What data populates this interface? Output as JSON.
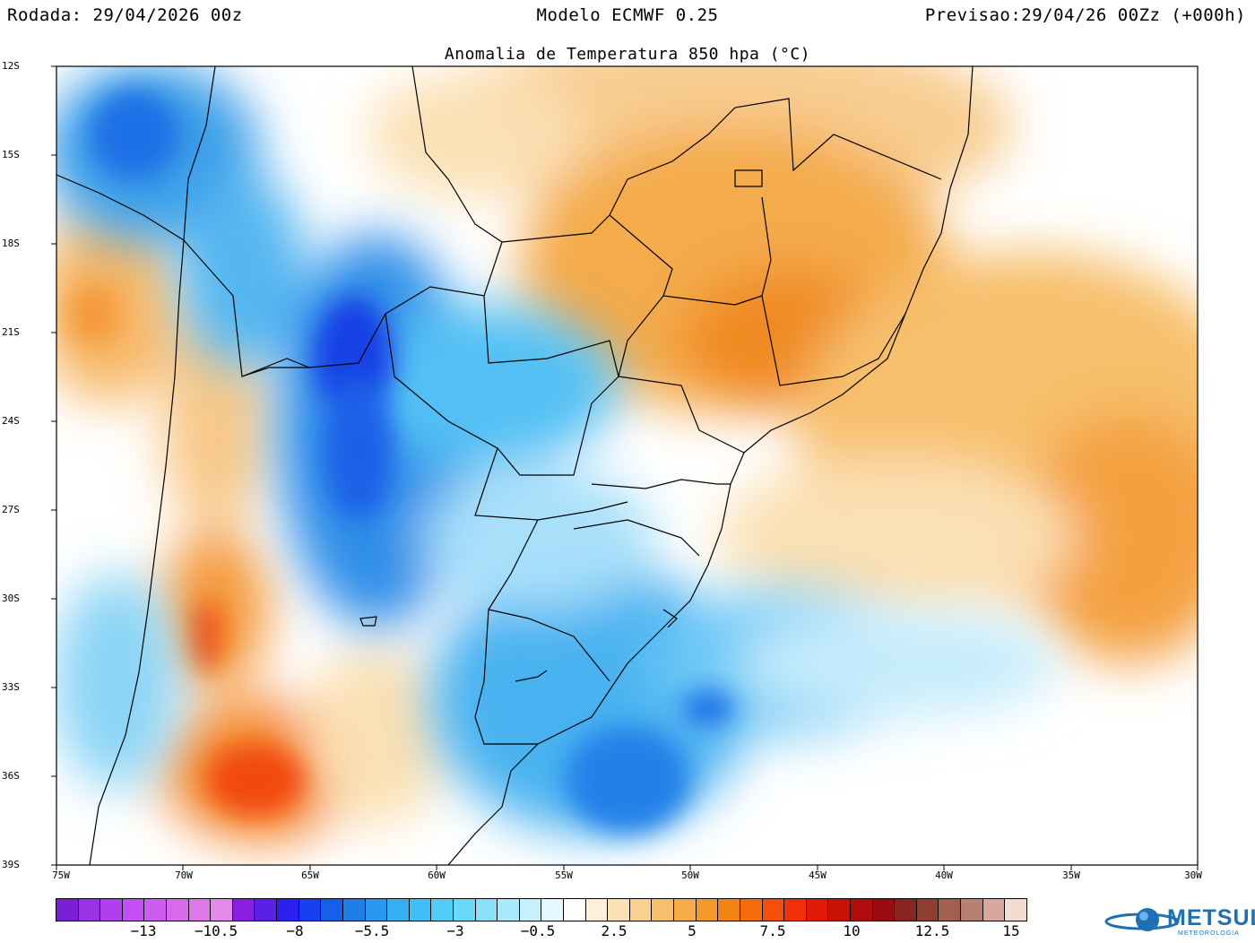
{
  "header": {
    "left": "Rodada: 29/04/2026 00z",
    "center": "Modelo ECMWF 0.25",
    "right": "Previsao:29/04/26 00Zz (+000h)"
  },
  "map": {
    "title": "Anomalia de Temperatura 850 hpa (°C)",
    "lat_labels": [
      "12S",
      "15S",
      "18S",
      "21S",
      "24S",
      "27S",
      "30S",
      "33S",
      "36S",
      "39S"
    ],
    "lon_labels": [
      "75W",
      "70W",
      "65W",
      "60W",
      "55W",
      "50W",
      "45W",
      "40W",
      "35W",
      "30W"
    ]
  },
  "legend": {
    "colors": [
      "#7a1fd6",
      "#9a33e6",
      "#b13ff0",
      "#c24ff5",
      "#cd5df0",
      "#d66ae8",
      "#dd78e6",
      "#e389e8",
      "#8a1fe0",
      "#5b1fe8",
      "#2a20f0",
      "#1740ee",
      "#1560e6",
      "#1f7ee8",
      "#2a98ee",
      "#35aef4",
      "#3ec0f6",
      "#52cef6",
      "#6cd8f8",
      "#8ae0f8",
      "#a8e8fa",
      "#c6f0fc",
      "#e4f8ff",
      "#ffffff",
      "#fdefd8",
      "#fbe0b4",
      "#f9d090",
      "#f7bf6c",
      "#f6ad48",
      "#f49a2a",
      "#f38414",
      "#f46c0c",
      "#f44f0a",
      "#ef3008",
      "#e01a06",
      "#c81204",
      "#b00c0c",
      "#980c10",
      "#8a2420",
      "#8f3e30",
      "#a06050",
      "#b88070",
      "#d8a8a0",
      "#f4ddd0"
    ],
    "labels": [
      "−13",
      "−10.5",
      "−8",
      "−5.5",
      "−3",
      "−0.5",
      "2.5",
      "5",
      "7.5",
      "10",
      "12.5",
      "15"
    ]
  },
  "logo": {
    "name": "METSUL",
    "sub": "METEOROLOGIA"
  }
}
